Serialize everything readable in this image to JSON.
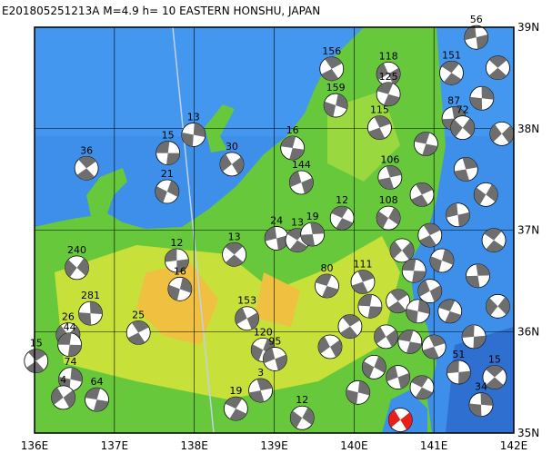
{
  "map": {
    "title": "E201805251213A  M=4.9  h= 10 EASTERN HONSHU, JAPAN",
    "xlim": [
      136,
      142
    ],
    "ylim": [
      35,
      39
    ],
    "xticks": [
      {
        "value": 136,
        "label": "136E"
      },
      {
        "value": 137,
        "label": "137E"
      },
      {
        "value": 138,
        "label": "138E"
      },
      {
        "value": 139,
        "label": "139E"
      },
      {
        "value": 140,
        "label": "140E"
      },
      {
        "value": 141,
        "label": "141E"
      },
      {
        "value": 142,
        "label": "142E"
      }
    ],
    "yticks": [
      {
        "value": 35,
        "label": "35N"
      },
      {
        "value": 36,
        "label": "36N"
      },
      {
        "value": 37,
        "label": "37N"
      },
      {
        "value": 38,
        "label": "38N"
      },
      {
        "value": 39,
        "label": "39N"
      }
    ],
    "main_event": {
      "lon": 140.58,
      "lat": 35.13,
      "color": "#e8201c"
    },
    "events": [
      {
        "lon": 137.67,
        "lat": 37.76,
        "depth": "15"
      },
      {
        "lon": 136.65,
        "lat": 37.61,
        "depth": "36"
      },
      {
        "lon": 137.99,
        "lat": 37.94,
        "depth": "13"
      },
      {
        "lon": 138.47,
        "lat": 37.65,
        "depth": "30"
      },
      {
        "lon": 139.23,
        "lat": 37.81,
        "depth": "16"
      },
      {
        "lon": 139.72,
        "lat": 38.59,
        "depth": "156"
      },
      {
        "lon": 139.77,
        "lat": 38.23,
        "depth": "159"
      },
      {
        "lon": 140.43,
        "lat": 38.54,
        "depth": "118"
      },
      {
        "lon": 140.43,
        "lat": 38.34,
        "depth": "125"
      },
      {
        "lon": 140.32,
        "lat": 38.01,
        "depth": "115"
      },
      {
        "lon": 137.66,
        "lat": 37.38,
        "depth": "21"
      },
      {
        "lon": 139.34,
        "lat": 37.47,
        "depth": "144"
      },
      {
        "lon": 139.85,
        "lat": 37.12,
        "depth": "12"
      },
      {
        "lon": 140.45,
        "lat": 37.52,
        "depth": "106"
      },
      {
        "lon": 140.43,
        "lat": 37.12,
        "depth": "108"
      },
      {
        "lon": 139.03,
        "lat": 36.92,
        "depth": "24"
      },
      {
        "lon": 139.29,
        "lat": 36.9,
        "depth": "13"
      },
      {
        "lon": 139.48,
        "lat": 36.96,
        "depth": "19"
      },
      {
        "lon": 136.53,
        "lat": 36.63,
        "depth": "240"
      },
      {
        "lon": 137.78,
        "lat": 36.7,
        "depth": "12"
      },
      {
        "lon": 138.5,
        "lat": 36.76,
        "depth": "13"
      },
      {
        "lon": 136.7,
        "lat": 36.18,
        "depth": "281"
      },
      {
        "lon": 136.42,
        "lat": 35.97,
        "depth": "26"
      },
      {
        "lon": 136.44,
        "lat": 35.87,
        "depth": "44"
      },
      {
        "lon": 136.02,
        "lat": 35.71,
        "depth": "15"
      },
      {
        "lon": 136.45,
        "lat": 35.53,
        "depth": "74"
      },
      {
        "lon": 136.36,
        "lat": 35.35,
        "depth": "4"
      },
      {
        "lon": 136.78,
        "lat": 35.33,
        "depth": "64"
      },
      {
        "lon": 137.3,
        "lat": 35.99,
        "depth": "25"
      },
      {
        "lon": 137.82,
        "lat": 36.42,
        "depth": "16"
      },
      {
        "lon": 138.66,
        "lat": 36.13,
        "depth": "153"
      },
      {
        "lon": 139.66,
        "lat": 36.45,
        "depth": "80"
      },
      {
        "lon": 140.11,
        "lat": 36.49,
        "depth": "111"
      },
      {
        "lon": 138.86,
        "lat": 35.82,
        "depth": "120"
      },
      {
        "lon": 139.01,
        "lat": 35.73,
        "depth": "95"
      },
      {
        "lon": 138.52,
        "lat": 35.24,
        "depth": "19"
      },
      {
        "lon": 138.83,
        "lat": 35.42,
        "depth": "3"
      },
      {
        "lon": 139.35,
        "lat": 35.15,
        "depth": "12"
      },
      {
        "lon": 141.53,
        "lat": 38.9,
        "depth": "56"
      },
      {
        "lon": 141.22,
        "lat": 38.55,
        "depth": "151"
      },
      {
        "lon": 141.25,
        "lat": 38.1,
        "depth": "87"
      },
      {
        "lon": 141.36,
        "lat": 38.01,
        "depth": "72"
      },
      {
        "lon": 141.31,
        "lat": 35.6,
        "depth": "51"
      },
      {
        "lon": 141.76,
        "lat": 35.55,
        "depth": "15"
      },
      {
        "lon": 141.59,
        "lat": 35.28,
        "depth": "34"
      },
      {
        "lon": 140.6,
        "lat": 36.8
      },
      {
        "lon": 140.75,
        "lat": 36.6
      },
      {
        "lon": 140.55,
        "lat": 36.3
      },
      {
        "lon": 140.8,
        "lat": 36.2
      },
      {
        "lon": 140.4,
        "lat": 35.95
      },
      {
        "lon": 140.7,
        "lat": 35.9
      },
      {
        "lon": 140.95,
        "lat": 36.95
      },
      {
        "lon": 141.1,
        "lat": 36.7
      },
      {
        "lon": 140.95,
        "lat": 36.4
      },
      {
        "lon": 141.2,
        "lat": 36.2
      },
      {
        "lon": 141.0,
        "lat": 35.85
      },
      {
        "lon": 140.25,
        "lat": 35.65
      },
      {
        "lon": 140.55,
        "lat": 35.55
      },
      {
        "lon": 140.85,
        "lat": 35.45
      },
      {
        "lon": 141.4,
        "lat": 37.6
      },
      {
        "lon": 141.65,
        "lat": 37.35
      },
      {
        "lon": 141.3,
        "lat": 37.15
      },
      {
        "lon": 141.75,
        "lat": 36.9
      },
      {
        "lon": 141.55,
        "lat": 36.55
      },
      {
        "lon": 141.8,
        "lat": 36.25
      },
      {
        "lon": 141.5,
        "lat": 35.95
      },
      {
        "lon": 141.8,
        "lat": 38.6
      },
      {
        "lon": 141.6,
        "lat": 38.3
      },
      {
        "lon": 141.85,
        "lat": 37.95
      },
      {
        "lon": 140.2,
        "lat": 36.25
      },
      {
        "lon": 139.95,
        "lat": 36.05
      },
      {
        "lon": 140.05,
        "lat": 35.4
      },
      {
        "lon": 139.7,
        "lat": 35.85
      },
      {
        "lon": 140.9,
        "lat": 37.85
      },
      {
        "lon": 140.85,
        "lat": 37.35
      }
    ]
  }
}
